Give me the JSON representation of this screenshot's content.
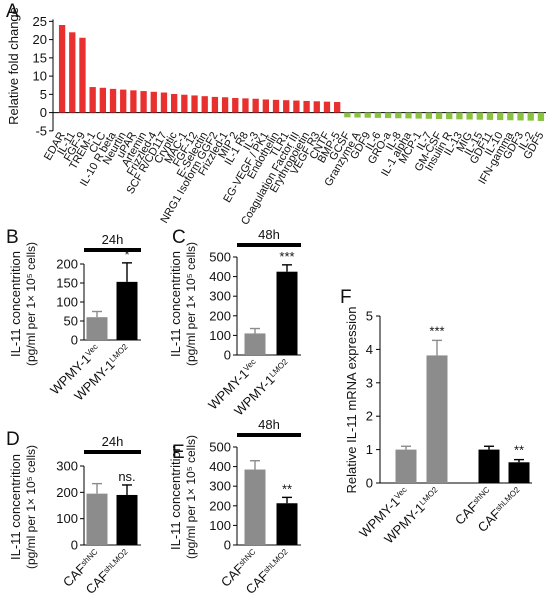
{
  "panel_letters": {
    "A": "A",
    "B": "B",
    "C": "C",
    "D": "D",
    "E": "E",
    "F": "F"
  },
  "chart_data": [
    {
      "panel": "A",
      "type": "bar",
      "ylabel": "Relative fold change",
      "ylim": [
        -5,
        25
      ],
      "yticks": [
        "25",
        "20",
        "15",
        "10",
        "5",
        "0",
        "-5"
      ],
      "highlight_color": "#e8312f",
      "up_color": "#e8312f",
      "down_color": "#8ac33f",
      "categories": [
        "EDAR",
        "IL-11",
        "FGF-9",
        "TREM-1",
        "CLC",
        "IL-10 R beta",
        "Neurtin",
        "uPAR",
        "Artemin",
        "Frizzled-4",
        "SCF R/CD117",
        "Cryptic",
        "MAC-1",
        "FGF-12",
        "E-Selectin",
        "NRG1 Isoform GGF2",
        "Frizzled-1",
        "MIP 2",
        "IL-1 R8",
        "IL-3",
        "EG-VEGF / PK1",
        "Endothelin",
        "TLR1",
        "Coagulation Factor III",
        "Erythropoietin",
        "VEGF R3",
        "CNTF",
        "BMP-5",
        "GCSF",
        "Granzyme A",
        "GDF9",
        "IL-6",
        "GRO-a",
        "IL-8",
        "IL-1 alpha",
        "MCP-1",
        "IL-7",
        "GM-CSF",
        "Insulin R",
        "IL-13",
        "MIG",
        "IL-15",
        "GDF11",
        "IL-10",
        "IFN-gamma",
        "GDF3",
        "IL-2",
        "GDF5"
      ],
      "values": [
        24,
        22,
        20.5,
        7,
        6.8,
        6.5,
        6.3,
        6.1,
        5.9,
        5.7,
        5.5,
        5.1,
        4.9,
        4.7,
        4.5,
        4.3,
        4.2,
        4.0,
        3.9,
        3.8,
        3.6,
        3.5,
        3.4,
        3.3,
        3.2,
        3.1,
        3.0,
        2.9,
        -1.3,
        -1.35,
        -1.4,
        -1.45,
        -1.5,
        -1.55,
        -1.6,
        -1.65,
        -1.7,
        -1.75,
        -1.8,
        -1.85,
        -1.9,
        -1.95,
        -2.0,
        -2.05,
        -2.1,
        -2.15,
        -2.2,
        -2.3
      ]
    },
    {
      "panel": "B",
      "type": "bar",
      "header": "24h",
      "ylabel": "IL-11 concentrition",
      "ylabel2": "(pg/ml per 1× 10⁵ cells)",
      "ylim": [
        0,
        200
      ],
      "yticks": [
        "0",
        "50",
        "100",
        "150",
        "200"
      ],
      "categories": [
        {
          "base": "WPMY-1",
          "sup": "Vec"
        },
        {
          "base": "WPMY-1",
          "sup": "LMO2"
        }
      ],
      "values": [
        60,
        153
      ],
      "errors": [
        15,
        50
      ],
      "colors": [
        "#8c8c8c",
        "#000000"
      ],
      "significance": [
        "",
        "*"
      ]
    },
    {
      "panel": "C",
      "type": "bar",
      "header": "48h",
      "ylabel": "IL-11 concentrition",
      "ylabel2": "(pg/ml per 1× 10⁵ cells)",
      "ylim": [
        0,
        500
      ],
      "yticks": [
        "0",
        "100",
        "200",
        "300",
        "400",
        "500"
      ],
      "categories": [
        {
          "base": "WPMY-1",
          "sup": "Vec"
        },
        {
          "base": "WPMY-1",
          "sup": "LMO2"
        }
      ],
      "values": [
        110,
        425
      ],
      "errors": [
        25,
        35
      ],
      "colors": [
        "#8c8c8c",
        "#000000"
      ],
      "significance": [
        "",
        "***"
      ]
    },
    {
      "panel": "D",
      "type": "bar",
      "header": "24h",
      "ylabel": "IL-11 concentrition",
      "ylabel2": "(pg/ml per 1× 10⁵ cells)",
      "ylim": [
        0,
        300
      ],
      "yticks": [
        "0",
        "100",
        "200",
        "300"
      ],
      "categories": [
        {
          "base": "CAF",
          "sup": "shNC"
        },
        {
          "base": "CAF",
          "sup": "shLMO2"
        }
      ],
      "values": [
        195,
        190
      ],
      "errors": [
        38,
        38
      ],
      "colors": [
        "#8c8c8c",
        "#000000"
      ],
      "significance": [
        "",
        "ns."
      ]
    },
    {
      "panel": "E",
      "type": "bar",
      "header": "48h",
      "ylabel": "IL-11 concentrition",
      "ylabel2": "(pg/ml per 1× 10⁵ cells)",
      "ylim": [
        0,
        500
      ],
      "yticks": [
        "0",
        "100",
        "200",
        "300",
        "400",
        "500"
      ],
      "categories": [
        {
          "base": "CAF",
          "sup": "shNC"
        },
        {
          "base": "CAF",
          "sup": "shLMO2"
        }
      ],
      "values": [
        385,
        213
      ],
      "errors": [
        45,
        30
      ],
      "colors": [
        "#8c8c8c",
        "#000000"
      ],
      "significance": [
        "",
        "**"
      ]
    },
    {
      "panel": "F",
      "type": "bar",
      "ylabel": "Relative IL-11 mRNA expression",
      "ylim": [
        0,
        5
      ],
      "yticks": [
        "0",
        "1",
        "2",
        "3",
        "4",
        "5"
      ],
      "categories": [
        {
          "base": "WPMY-1",
          "sup": "Vec"
        },
        {
          "base": "WPMY-1",
          "sup": "LMO2"
        },
        {
          "base": "CAF",
          "sup": "shNC"
        },
        {
          "base": "CAF",
          "sup": "shLMO2"
        }
      ],
      "values": [
        1.0,
        3.82,
        1.0,
        0.62
      ],
      "errors": [
        0.1,
        0.45,
        0.1,
        0.08
      ],
      "colors": [
        "#8c8c8c",
        "#8c8c8c",
        "#000000",
        "#000000"
      ],
      "significance": [
        "",
        "***",
        "",
        "**"
      ]
    }
  ]
}
